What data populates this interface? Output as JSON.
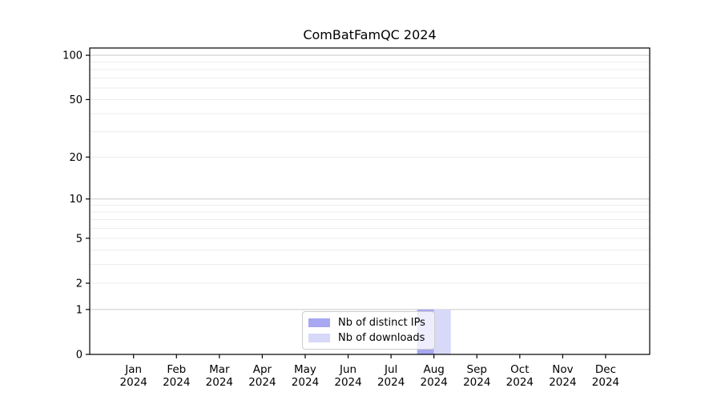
{
  "chart_data": {
    "type": "bar",
    "title": "ComBatFamQC 2024",
    "xlabel": "",
    "ylabel": "",
    "categories": [
      "Jan 2024",
      "Feb 2024",
      "Mar 2024",
      "Apr 2024",
      "May 2024",
      "Jun 2024",
      "Jul 2024",
      "Aug 2024",
      "Sep 2024",
      "Oct 2024",
      "Nov 2024",
      "Dec 2024"
    ],
    "series": [
      {
        "name": "Nb of distinct IPs",
        "color": "#a7a7f2",
        "values": [
          0,
          0,
          0,
          0,
          0,
          0,
          0,
          1,
          0,
          0,
          0,
          0
        ]
      },
      {
        "name": "Nb of downloads",
        "color": "#d8d8f9",
        "values": [
          0,
          0,
          0,
          0,
          0,
          0,
          0,
          1,
          0,
          0,
          0,
          0
        ]
      }
    ],
    "y_scale": "log1p",
    "y_ticks": [
      0,
      1,
      2,
      5,
      10,
      20,
      50,
      100
    ],
    "ylim": [
      0,
      112
    ],
    "grid": {
      "major": [
        1,
        10,
        100
      ],
      "minor": [
        2,
        3,
        4,
        5,
        6,
        7,
        8,
        9,
        20,
        30,
        40,
        50,
        60,
        70,
        80,
        90
      ]
    },
    "legend_position": "bottom-center"
  }
}
